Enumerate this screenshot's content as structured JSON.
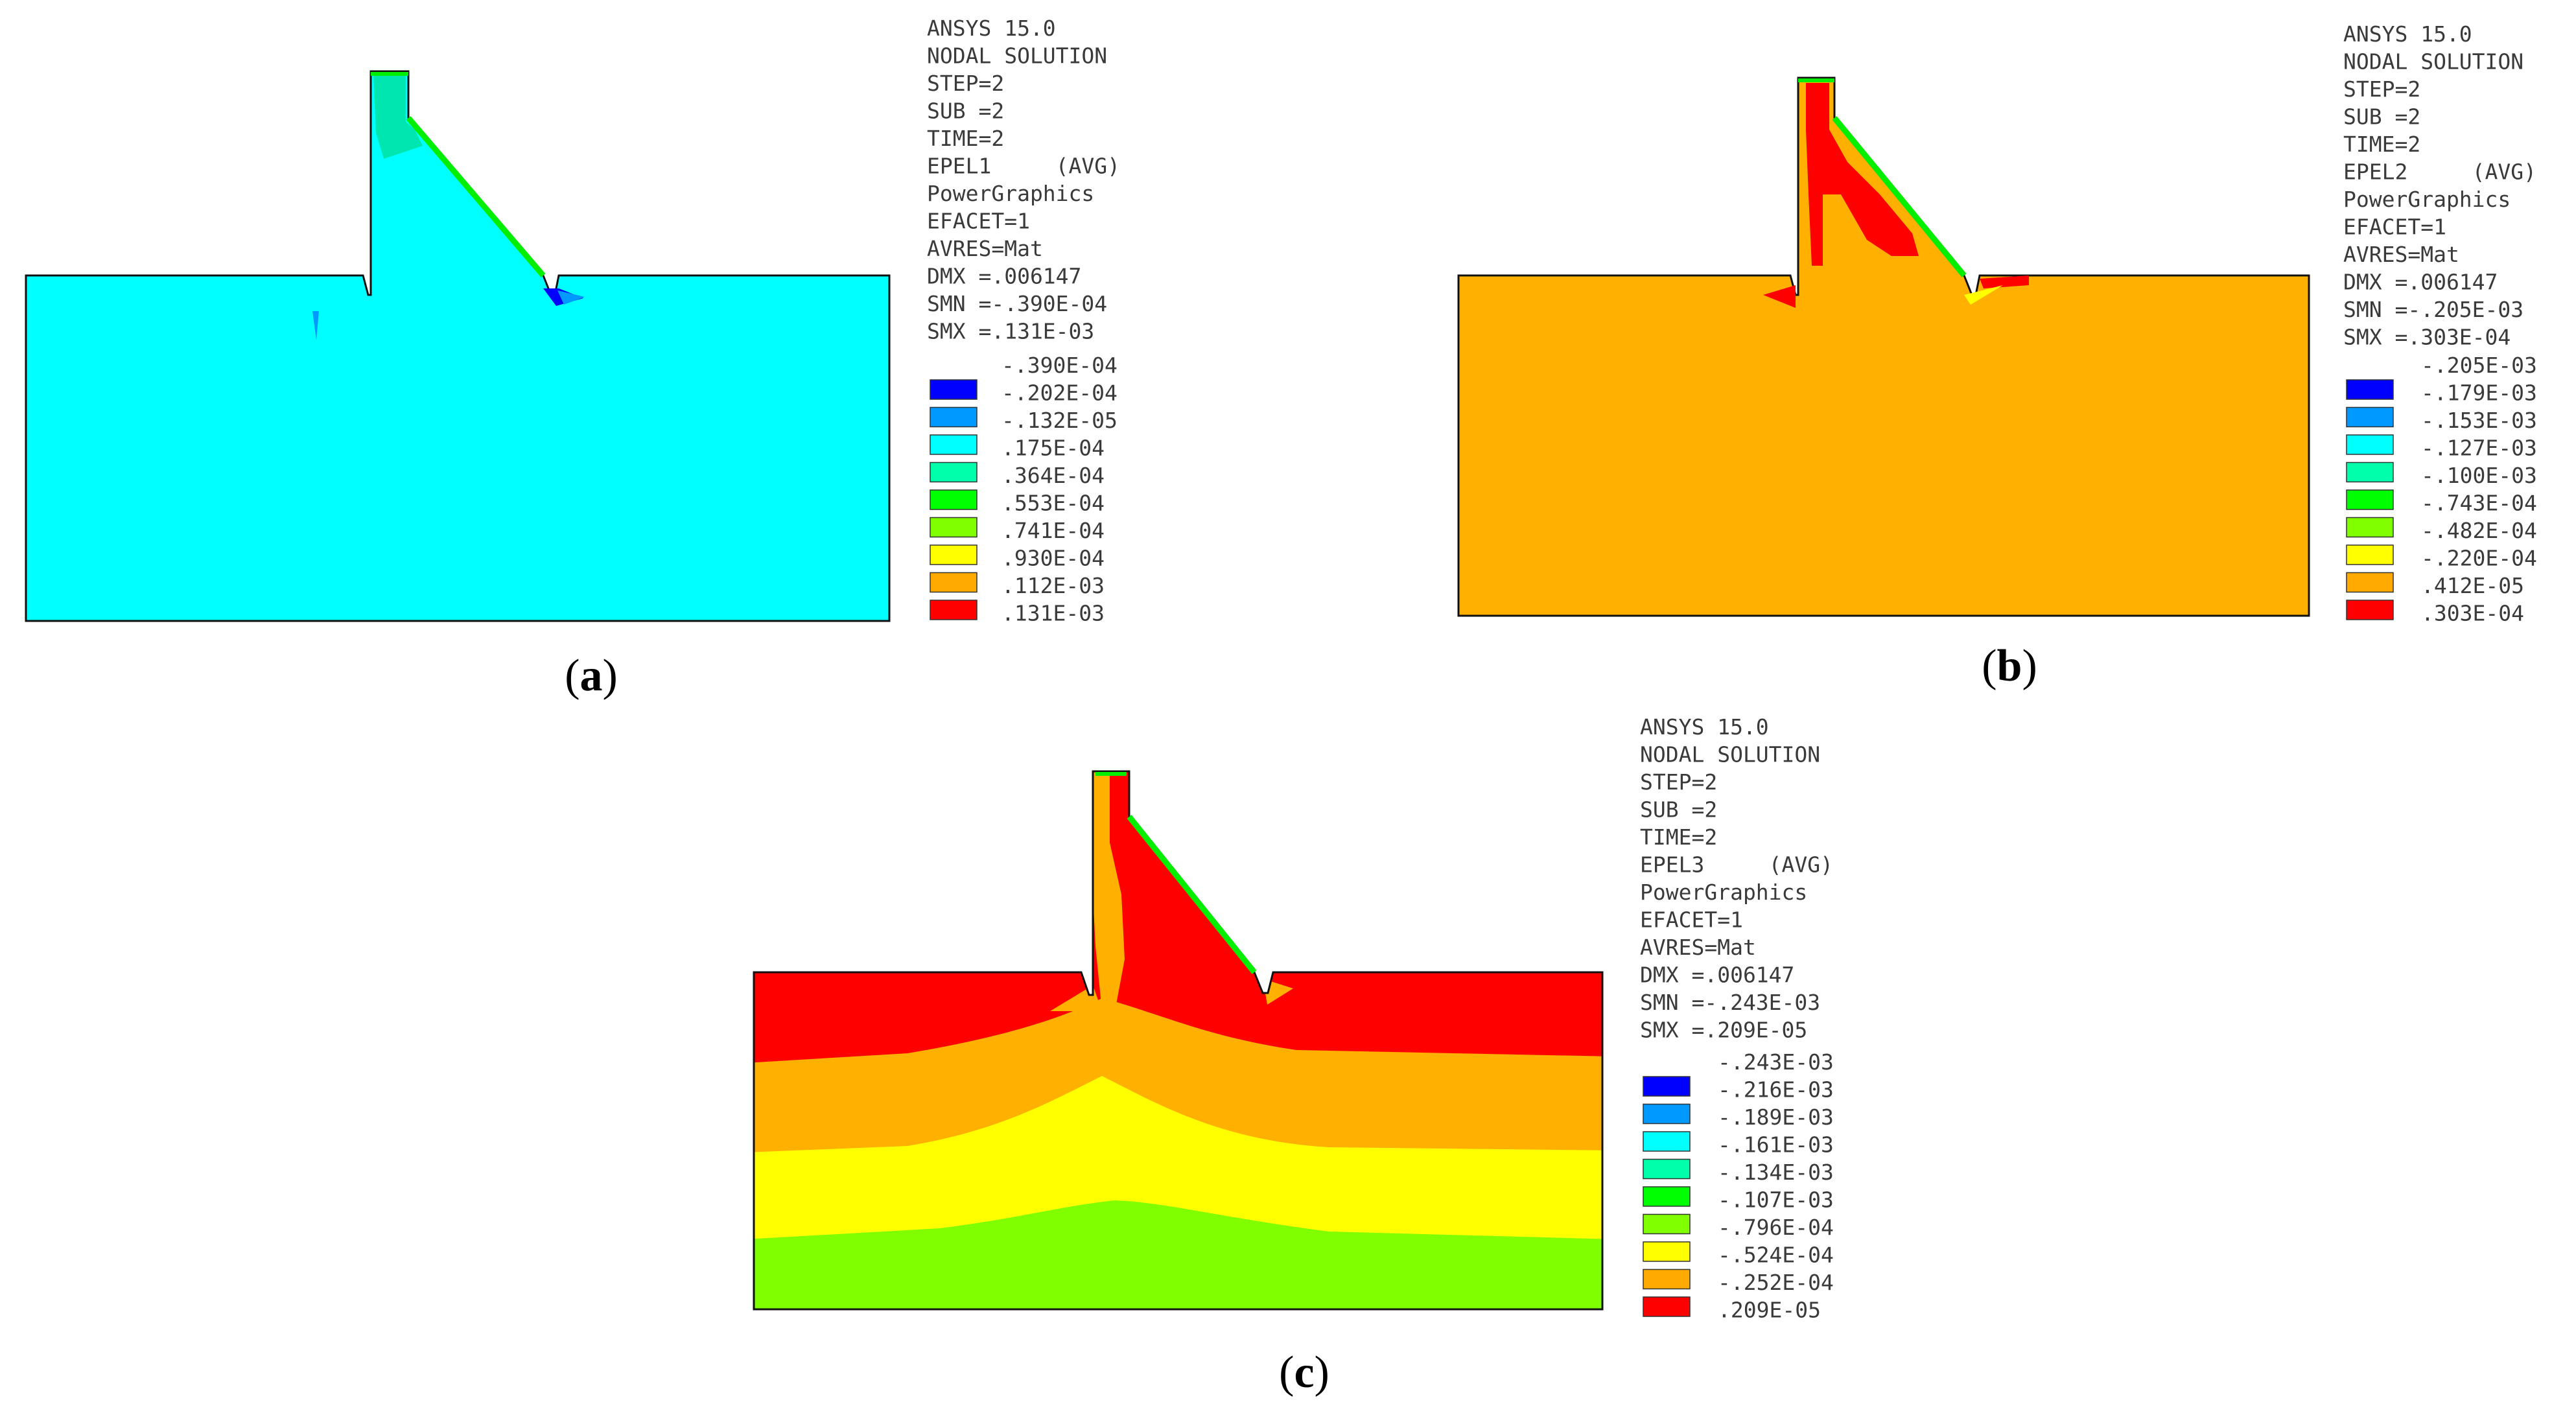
{
  "panels": [
    {
      "id": "a",
      "caption": "a",
      "header": [
        "ANSYS 15.0",
        "NODAL SOLUTION",
        "STEP=2",
        "SUB =2",
        "TIME=2",
        "EPEL1     (AVG)",
        "PowerGraphics",
        "EFACET=1",
        "AVRES=Mat",
        "DMX =.006147",
        "SMN =-.390E-04",
        "SMX =.131E-03"
      ],
      "legend_values": [
        "-.390E-04",
        "-.202E-04",
        "-.132E-05",
        ".175E-04",
        ".364E-04",
        ".553E-04",
        ".741E-04",
        ".930E-04",
        ".112E-03",
        ".131E-03"
      ],
      "legend_colors": [
        "#0000ff",
        "#0099ff",
        "#00ffff",
        "#00ffaa",
        "#00ff00",
        "#80ff00",
        "#ffff00",
        "#ffaa00",
        "#ff0000"
      ]
    },
    {
      "id": "b",
      "caption": "b",
      "header": [
        "ANSYS 15.0",
        "NODAL SOLUTION",
        "STEP=2",
        "SUB =2",
        "TIME=2",
        "EPEL2     (AVG)",
        "PowerGraphics",
        "EFACET=1",
        "AVRES=Mat",
        "DMX =.006147",
        "SMN =-.205E-03",
        "SMX =.303E-04"
      ],
      "legend_values": [
        "-.205E-03",
        "-.179E-03",
        "-.153E-03",
        "-.127E-03",
        "-.100E-03",
        "-.743E-04",
        "-.482E-04",
        "-.220E-04",
        ".412E-05",
        ".303E-04"
      ],
      "legend_colors": [
        "#0000ff",
        "#0099ff",
        "#00ffff",
        "#00ffaa",
        "#00ff00",
        "#80ff00",
        "#ffff00",
        "#ffaa00",
        "#ff0000"
      ]
    },
    {
      "id": "c",
      "caption": "c",
      "header": [
        "ANSYS 15.0",
        "NODAL SOLUTION",
        "STEP=2",
        "SUB =2",
        "TIME=2",
        "EPEL3     (AVG)",
        "PowerGraphics",
        "EFACET=1",
        "AVRES=Mat",
        "DMX =.006147",
        "SMN =-.243E-03",
        "SMX =.209E-05"
      ],
      "legend_values": [
        "-.243E-03",
        "-.216E-03",
        "-.189E-03",
        "-.161E-03",
        "-.134E-03",
        "-.107E-03",
        "-.796E-04",
        "-.524E-04",
        "-.252E-04",
        ".209E-05"
      ],
      "legend_colors": [
        "#0000ff",
        "#0099ff",
        "#00ffff",
        "#00ffaa",
        "#00ff00",
        "#80ff00",
        "#ffff00",
        "#ffaa00",
        "#ff0000"
      ]
    }
  ],
  "contour_colors": {
    "cyan": "#00ffff",
    "teal": "#00e6b0",
    "green": "#00ff00",
    "blue": "#0000ff",
    "orange": "#ffb000",
    "red": "#ff0000",
    "yellow": "#ffff00",
    "lime": "#80ff00"
  }
}
